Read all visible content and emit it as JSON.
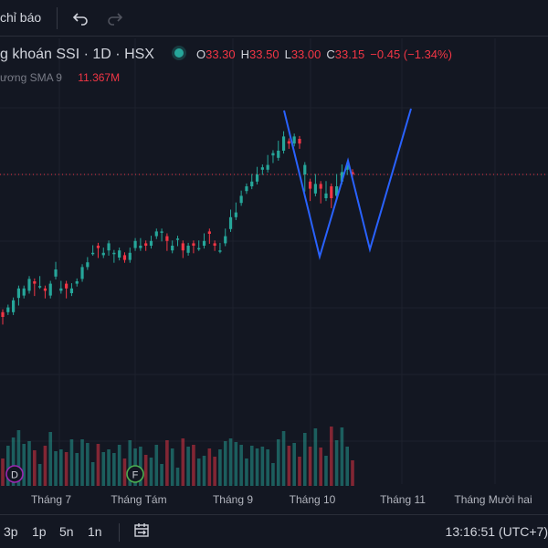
{
  "toolbar": {
    "indicators_label": "chỉ báo",
    "undo_icon": "undo-icon",
    "redo_icon": "redo-icon"
  },
  "legend": {
    "symbol_title": "g khoán SSI · 1D · HSX",
    "market_status_color": "#26a69a",
    "ohlc": {
      "o_key": "O",
      "o_val": "33.30",
      "h_key": "H",
      "h_val": "33.50",
      "l_key": "L",
      "l_val": "33.00",
      "c_key": "C",
      "c_val": "33.15",
      "change": "−0.45 (−1.34%)"
    },
    "volume_name": "ương",
    "sma_name": "SMA 9",
    "sma_value": "11.367M"
  },
  "colors": {
    "up": "#26a69a",
    "down": "#f23645",
    "drawing": "#2962ff",
    "price_line": "#f23645",
    "background": "#131722"
  },
  "x_axis": {
    "labels": [
      "Tháng 7",
      "Tháng Tám",
      "Tháng 9",
      "Tháng 10",
      "Tháng 11",
      "Tháng Mười hai"
    ]
  },
  "events": [
    {
      "letter": "D",
      "color": "#9c27b0"
    },
    {
      "letter": "F",
      "color": "#4caf50"
    }
  ],
  "bottom": {
    "timeframes": [
      "3p",
      "1p",
      "5n",
      "1n"
    ],
    "compare_icon": "date-range-icon",
    "clock": "13:16:51 (UTC+7)"
  },
  "chart_data": {
    "type": "candlestick",
    "current_price": 33.15,
    "candles": [
      [
        27.35,
        27.15,
        26.95
      ],
      [
        27.35,
        27.55,
        27.35
      ],
      [
        27.35,
        27.85,
        27.55
      ],
      [
        27.95,
        28.35,
        27.75
      ],
      [
        28.05,
        28.35,
        28.05
      ],
      [
        28.25,
        28.75,
        28.45
      ],
      [
        28.65,
        28.55,
        28.15
      ],
      [
        28.45,
        28.45,
        28.75
      ],
      [
        28.35,
        28.25,
        28.05
      ],
      [
        28.05,
        28.55,
        28.45
      ],
      [
        28.85,
        29.15,
        29.35
      ],
      [
        28.25,
        28.35,
        28.55
      ],
      [
        28.55,
        28.35,
        28.05
      ],
      [
        28.15,
        28.35,
        28.45
      ],
      [
        28.55,
        28.65,
        28.65
      ],
      [
        28.75,
        29.25,
        29.05
      ],
      [
        29.25,
        29.45,
        29.55
      ],
      [
        29.85,
        29.85,
        30.05
      ],
      [
        30.15,
        30.05,
        29.75
      ],
      [
        29.75,
        29.85,
        29.95
      ],
      [
        29.95,
        30.25,
        29.85
      ],
      [
        29.85,
        29.85,
        29.55
      ],
      [
        29.65,
        29.95,
        29.85
      ],
      [
        29.75,
        29.55,
        29.55
      ],
      [
        29.55,
        29.85,
        29.95
      ],
      [
        30.05,
        30.35,
        30.15
      ],
      [
        30.05,
        30.15,
        30.35
      ],
      [
        30.25,
        30.15,
        30.05
      ],
      [
        30.15,
        30.35,
        30.45
      ],
      [
        30.55,
        30.75,
        30.65
      ],
      [
        30.75,
        30.75,
        30.45
      ],
      [
        30.55,
        30.35,
        30.05
      ],
      [
        29.95,
        30.15,
        30.25
      ],
      [
        30.45,
        30.45,
        30.25
      ],
      [
        30.25,
        29.95,
        29.75
      ],
      [
        29.85,
        30.15,
        30.15
      ],
      [
        30.25,
        30.15,
        29.95
      ],
      [
        30.05,
        30.05,
        30.25
      ],
      [
        30.15,
        30.35,
        30.55
      ],
      [
        30.75,
        30.65,
        30.35
      ],
      [
        30.25,
        30.15,
        30.05
      ],
      [
        29.95,
        29.95,
        30.15
      ],
      [
        30.25,
        30.55,
        30.75
      ],
      [
        30.85,
        31.35,
        31.55
      ],
      [
        31.35,
        31.55,
        31.85
      ],
      [
        31.95,
        32.25,
        32.35
      ],
      [
        32.45,
        32.65,
        32.55
      ],
      [
        32.65,
        32.85,
        33.05
      ],
      [
        32.85,
        33.15,
        33.35
      ],
      [
        33.35,
        33.45,
        33.25
      ],
      [
        33.35,
        33.55,
        33.85
      ],
      [
        33.95,
        34.05,
        33.75
      ],
      [
        33.85,
        34.15,
        34.45
      ],
      [
        34.15,
        34.75,
        34.85
      ],
      [
        34.55,
        34.45,
        34.35
      ],
      [
        34.45,
        34.75,
        34.55
      ],
      [
        34.65,
        34.45,
        34.35
      ],
      [
        33.15,
        33.55,
        32.55
      ],
      [
        32.85,
        32.55,
        32.15
      ],
      [
        32.35,
        32.75,
        33.05
      ],
      [
        32.75,
        32.55,
        32.05
      ],
      [
        32.15,
        32.35,
        32.75
      ],
      [
        32.65,
        32.15,
        31.85
      ],
      [
        32.25,
        32.65,
        33.05
      ],
      [
        32.85,
        33.25,
        33.45
      ],
      [
        33.35,
        33.55,
        33.25
      ],
      [
        33.25,
        33.15,
        33.05
      ]
    ],
    "y_range": [
      26.5,
      35.5
    ],
    "volume_sma": [],
    "drawing_points": [
      {
        "x": 311,
        "y": 121
      },
      {
        "x": 350,
        "y": 281
      },
      {
        "x": 381,
        "y": 176
      },
      {
        "x": 405,
        "y": 273
      },
      {
        "x": 450,
        "y": 119
      }
    ]
  }
}
